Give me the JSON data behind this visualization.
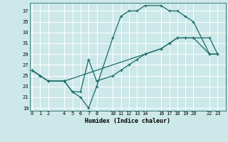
{
  "xlabel": "Humidex (Indice chaleur)",
  "bg_color": "#cde8e8",
  "grid_color": "#ffffff",
  "line_color": "#1a6b6b",
  "line1_x": [
    0,
    1,
    2,
    4,
    5,
    6,
    7,
    8,
    10,
    11,
    12,
    13,
    14,
    16,
    17,
    18,
    19,
    20,
    22,
    23
  ],
  "line1_y": [
    26,
    25,
    24,
    24,
    22,
    21,
    19,
    23,
    32,
    36,
    37,
    37,
    38,
    38,
    37,
    37,
    36,
    35,
    29,
    29
  ],
  "line2_x": [
    0,
    2,
    4,
    14,
    16,
    17,
    18,
    19,
    20,
    22,
    23
  ],
  "line2_y": [
    26,
    24,
    24,
    29,
    30,
    31,
    32,
    32,
    32,
    29,
    29
  ],
  "line3_x": [
    0,
    1,
    2,
    4,
    5,
    6,
    7,
    8,
    10,
    11,
    12,
    13,
    14,
    16,
    17,
    18,
    19,
    20,
    22,
    23
  ],
  "line3_y": [
    26,
    25,
    24,
    24,
    22,
    22,
    28,
    24,
    25,
    26,
    27,
    28,
    29,
    30,
    31,
    32,
    32,
    32,
    32,
    29
  ],
  "xticks": [
    0,
    1,
    2,
    4,
    5,
    6,
    7,
    8,
    10,
    11,
    12,
    13,
    14,
    16,
    17,
    18,
    19,
    20,
    22,
    23
  ],
  "yticks": [
    19,
    21,
    23,
    25,
    27,
    29,
    31,
    33,
    35,
    37
  ],
  "xlim": [
    -0.3,
    24.0
  ],
  "ylim": [
    18.5,
    38.5
  ],
  "markersize": 3,
  "linewidth": 0.9
}
